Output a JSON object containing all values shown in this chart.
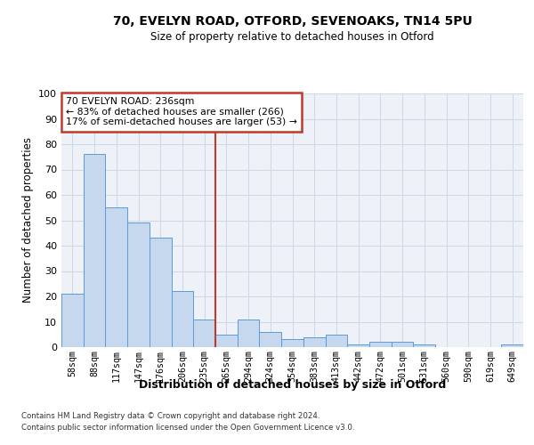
{
  "title_line1": "70, EVELYN ROAD, OTFORD, SEVENOAKS, TN14 5PU",
  "title_line2": "Size of property relative to detached houses in Otford",
  "xlabel": "Distribution of detached houses by size in Otford",
  "ylabel": "Number of detached properties",
  "categories": [
    "58sqm",
    "88sqm",
    "117sqm",
    "147sqm",
    "176sqm",
    "206sqm",
    "235sqm",
    "265sqm",
    "294sqm",
    "324sqm",
    "354sqm",
    "383sqm",
    "413sqm",
    "442sqm",
    "472sqm",
    "501sqm",
    "531sqm",
    "560sqm",
    "590sqm",
    "619sqm",
    "649sqm"
  ],
  "values": [
    21,
    76,
    55,
    49,
    43,
    22,
    11,
    5,
    11,
    6,
    3,
    4,
    5,
    1,
    2,
    2,
    1,
    0,
    0,
    0,
    1
  ],
  "bar_color": "#c5d8ed",
  "bar_edge_color": "#5b9bd5",
  "grid_color": "#d0d8e8",
  "background_color": "#eef2f8",
  "vline_bin_index": 6,
  "vline_color": "#c0392b",
  "annotation_text": "70 EVELYN ROAD: 236sqm\n← 83% of detached houses are smaller (266)\n17% of semi-detached houses are larger (53) →",
  "annotation_box_color": "#ffffff",
  "annotation_box_edge": "#c0392b",
  "ylim": [
    0,
    100
  ],
  "yticks": [
    0,
    10,
    20,
    30,
    40,
    50,
    60,
    70,
    80,
    90,
    100
  ],
  "footer_line1": "Contains HM Land Registry data © Crown copyright and database right 2024.",
  "footer_line2": "Contains public sector information licensed under the Open Government Licence v3.0."
}
